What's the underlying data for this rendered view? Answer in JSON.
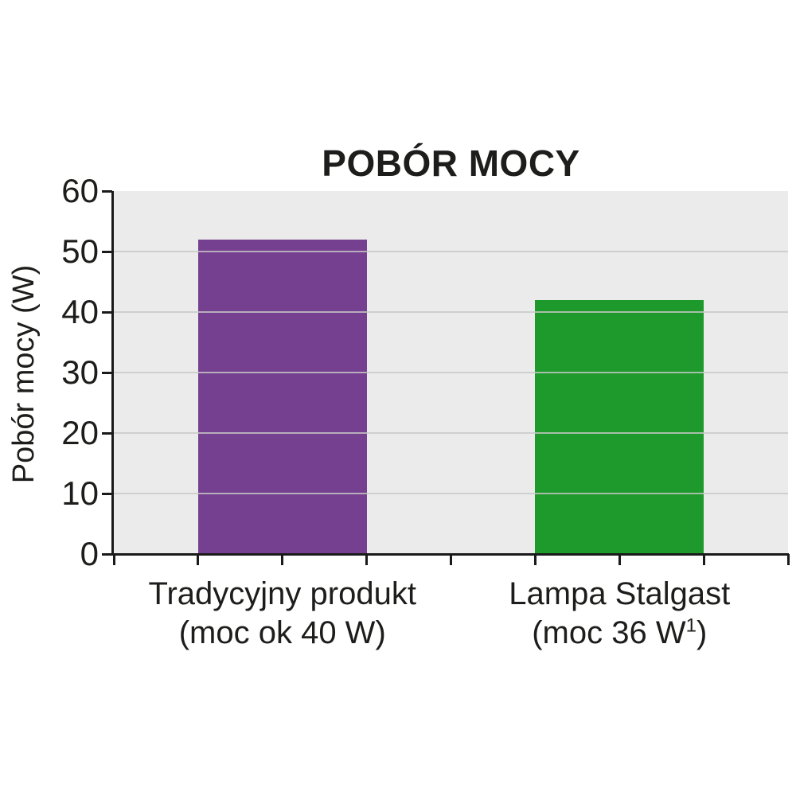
{
  "title": "POBÓR MOCY",
  "colors": {
    "bar_traditional": "#75408f",
    "bar_stalgast": "#1e992c",
    "plot_background": "#ebebeb",
    "gridline": "#c8c8c8",
    "axis": "#1a1a1a",
    "text": "#1d1d1b"
  },
  "chart_data": {
    "type": "bar",
    "title": "POBÓR MOCY",
    "xlabel": "",
    "ylabel": "Pobór mocy (W)",
    "ylim": [
      0,
      60
    ],
    "yticks": [
      0,
      10,
      20,
      30,
      40,
      50,
      60
    ],
    "x_minor_tick_count": 8,
    "grid": true,
    "legend_position": "none",
    "categories": [
      "Tradycyjny produkt (moc ok 40 W)",
      "Lampa Stalgast (moc 36 W¹)"
    ],
    "category_label_lines": [
      [
        "Tradycyjny produkt",
        "(moc ok 40 W)"
      ],
      [
        "Lampa Stalgast",
        "(moc 36 W¹)"
      ]
    ],
    "values": [
      52,
      42
    ],
    "bar_colors": [
      "#75408f",
      "#1e992c"
    ],
    "units": "W"
  }
}
